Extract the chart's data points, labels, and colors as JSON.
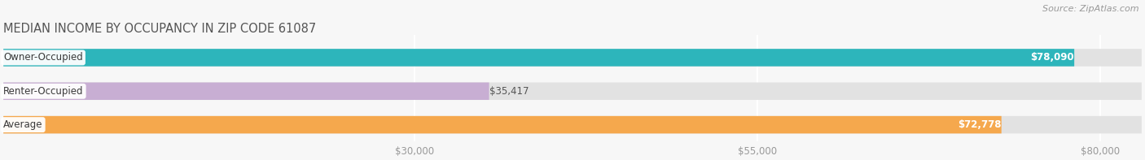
{
  "title": "MEDIAN INCOME BY OCCUPANCY IN ZIP CODE 61087",
  "source": "Source: ZipAtlas.com",
  "categories": [
    "Owner-Occupied",
    "Renter-Occupied",
    "Average"
  ],
  "values": [
    78090,
    35417,
    72778
  ],
  "bar_colors": [
    "#2db5bb",
    "#c8aed3",
    "#f5a84d"
  ],
  "value_labels": [
    "$78,090",
    "$35,417",
    "$72,778"
  ],
  "cat_labels": [
    "Owner-Occupied",
    "Renter-Occupied",
    "Average"
  ],
  "xticks": [
    30000,
    55000,
    80000
  ],
  "xtick_labels": [
    "$30,000",
    "$55,000",
    "$80,000"
  ],
  "xmin": 0,
  "xmax": 83000,
  "display_max": 83000,
  "title_fontsize": 10.5,
  "label_fontsize": 8.5,
  "value_fontsize": 8.5,
  "source_fontsize": 8,
  "bg_color": "#f7f7f7",
  "bar_bg_color": "#e2e2e2",
  "bar_height": 0.52,
  "bar_gap": 0.18,
  "value_threshold": 50000
}
